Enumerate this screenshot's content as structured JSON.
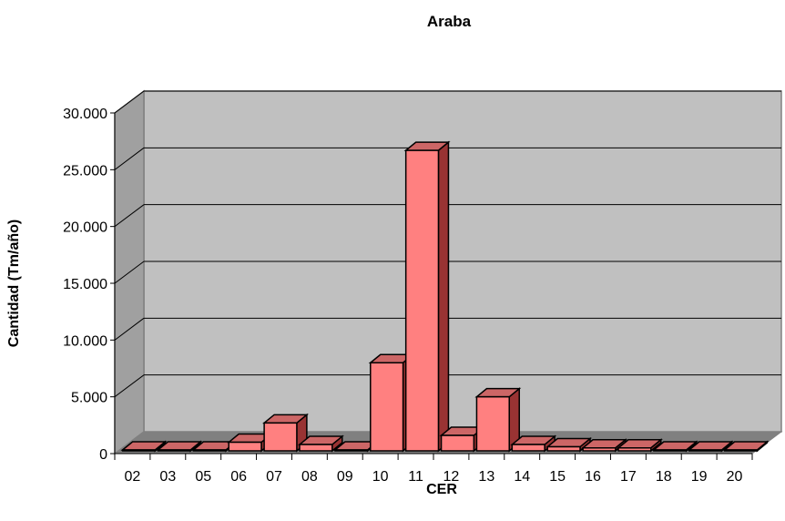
{
  "chart_data": {
    "type": "bar",
    "title": "Araba",
    "xlabel": "CER",
    "ylabel": "Cantidad (Tm/año)",
    "categories": [
      "02",
      "03",
      "05",
      "06",
      "07",
      "08",
      "09",
      "10",
      "11",
      "12",
      "13",
      "14",
      "15",
      "16",
      "17",
      "18",
      "19",
      "20"
    ],
    "values": [
      100,
      50,
      50,
      1000,
      2700,
      800,
      200,
      8000,
      26700,
      1600,
      5000,
      800,
      600,
      500,
      500,
      200,
      300,
      200
    ],
    "yticks": [
      "0",
      "5.000",
      "10.000",
      "15.000",
      "20.000",
      "25.000",
      "30.000"
    ],
    "ylim": [
      0,
      30000
    ],
    "grid": true,
    "legend": false,
    "style": "3d-column",
    "colors": {
      "bar_front": "#FF8080",
      "bar_top": "#CC6666",
      "bar_side": "#993333",
      "plot_back": "#C0C0C0",
      "plot_floor": "#808080",
      "plot_side": "#A0A0A0"
    }
  }
}
